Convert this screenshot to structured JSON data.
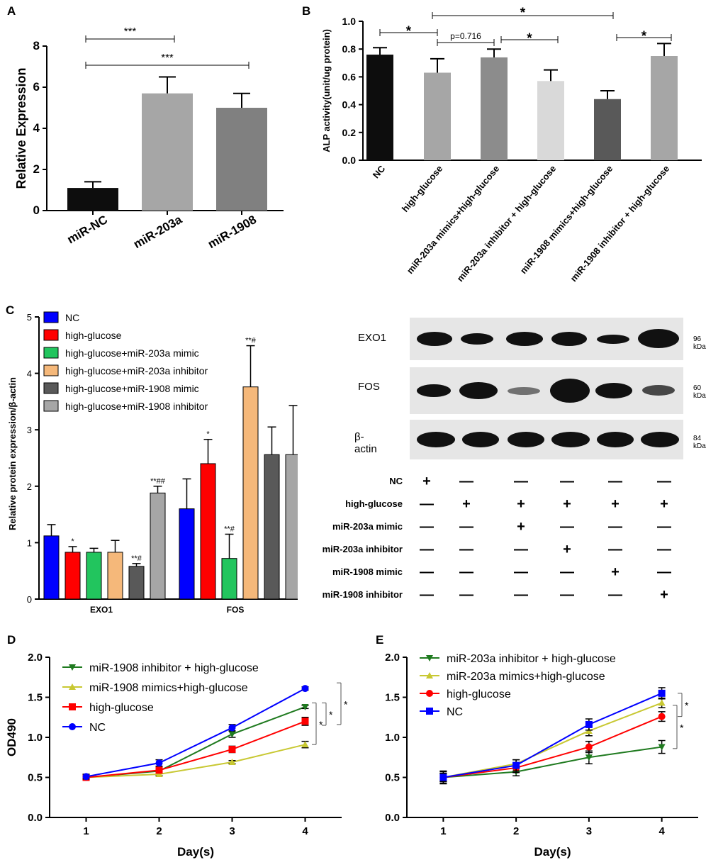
{
  "panels": {
    "A": "A",
    "B": "B",
    "C": "C",
    "D": "D",
    "E": "E"
  },
  "chart_data": [
    {
      "id": "A",
      "type": "bar",
      "title": "",
      "xlabel": "",
      "ylabel": "Relative Expression",
      "ylim": [
        0,
        8
      ],
      "yticks": [
        0,
        2,
        4,
        6,
        8
      ],
      "categories": [
        "miR-NC",
        "miR-203a",
        "miR-1908"
      ],
      "values": [
        1.1,
        5.7,
        5.0
      ],
      "errors": [
        0.3,
        0.8,
        0.7
      ],
      "colors": [
        "#0d0d0d",
        "#a6a6a6",
        "#808080"
      ],
      "annotations": [
        {
          "text": "***",
          "from": 0,
          "to": 1
        },
        {
          "text": "***",
          "from": 0,
          "to": 2
        }
      ]
    },
    {
      "id": "B",
      "type": "bar",
      "title": "",
      "xlabel": "",
      "ylabel": "ALP activity(unit/ug protein)",
      "ylim": [
        0,
        1.0
      ],
      "yticks": [
        0.0,
        0.2,
        0.4,
        0.6,
        0.8,
        1.0
      ],
      "categories": [
        "NC",
        "high-glucose",
        "miR-203a mimics+high-glucose",
        "miR-203a inhibitor + high-glucose",
        "miR-1908 mimics+high-glucose",
        "miR-1908 inhibitor + high-glucose"
      ],
      "values": [
        0.76,
        0.63,
        0.74,
        0.57,
        0.44,
        0.75
      ],
      "errors": [
        0.05,
        0.1,
        0.06,
        0.08,
        0.06,
        0.09
      ],
      "colors": [
        "#0d0d0d",
        "#a6a6a6",
        "#8c8c8c",
        "#d9d9d9",
        "#595959",
        "#a6a6a6"
      ],
      "annotations": [
        {
          "text": "*",
          "from": 0,
          "to": 1
        },
        {
          "text": "p=0.716",
          "from": 1,
          "to": 2
        },
        {
          "text": "*",
          "from": 2,
          "to": 3
        },
        {
          "text": "*",
          "from": 1,
          "to": 4
        },
        {
          "text": "*",
          "from": 4,
          "to": 5
        }
      ]
    },
    {
      "id": "C",
      "type": "bar",
      "title": "",
      "xlabel": "",
      "ylabel": "Relative protein expression/β-actin",
      "ylim": [
        0,
        5
      ],
      "yticks": [
        0,
        1,
        2,
        3,
        4,
        5
      ],
      "categories": [
        "EXO1",
        "FOS"
      ],
      "series": [
        {
          "name": "NC",
          "color": "#0000ff",
          "values": [
            1.12,
            1.6
          ],
          "errors": [
            0.2,
            0.53
          ],
          "labels": [
            "",
            ""
          ]
        },
        {
          "name": "high-glucose",
          "color": "#ff0000",
          "values": [
            0.83,
            2.4
          ],
          "errors": [
            0.1,
            0.43
          ],
          "labels": [
            "*",
            "*"
          ]
        },
        {
          "name": "high-glucose+miR-203a mimic",
          "color": "#22c55e",
          "values": [
            0.83,
            0.72
          ],
          "errors": [
            0.07,
            0.43
          ],
          "labels": [
            "",
            "**#"
          ]
        },
        {
          "name": "high-glucose+miR-203a inhibitor",
          "color": "#f5b87a",
          "values": [
            0.83,
            3.76
          ],
          "errors": [
            0.21,
            0.73
          ],
          "labels": [
            "",
            "**#"
          ]
        },
        {
          "name": "high-glucose+miR-1908 mimic",
          "color": "#595959",
          "values": [
            0.58,
            2.56
          ],
          "errors": [
            0.05,
            0.49
          ],
          "labels": [
            "**#",
            ""
          ]
        },
        {
          "name": "high-glucose+miR-1908 inhibitor",
          "color": "#a6a6a6",
          "values": [
            1.88,
            2.56
          ],
          "errors": [
            0.12,
            0.87
          ],
          "labels": [
            "**##",
            ""
          ]
        }
      ]
    },
    {
      "id": "D",
      "type": "line",
      "title": "",
      "xlabel": "Day(s)",
      "ylabel": "OD490",
      "x": [
        1,
        2,
        3,
        4
      ],
      "xlim": [
        0.5,
        4.5
      ],
      "ylim": [
        0.0,
        2.0
      ],
      "yticks": [
        0.0,
        0.5,
        1.0,
        1.5,
        2.0
      ],
      "series": [
        {
          "name": "miR-1908 inhibitor + high-glucose",
          "color": "#1f7a1f",
          "marker": "tri-down",
          "values": [
            0.5,
            0.58,
            1.04,
            1.38
          ],
          "errors": [
            0.02,
            0.02,
            0.04,
            0.02
          ]
        },
        {
          "name": "miR-1908 mimics+high-glucose",
          "color": "#c8c832",
          "marker": "tri-up",
          "values": [
            0.5,
            0.54,
            0.69,
            0.91
          ],
          "errors": [
            0.02,
            0.02,
            0.02,
            0.04
          ]
        },
        {
          "name": "high-glucose",
          "color": "#ff0000",
          "marker": "square",
          "values": [
            0.5,
            0.59,
            0.85,
            1.2
          ],
          "errors": [
            0.03,
            0.03,
            0.04,
            0.05
          ]
        },
        {
          "name": "NC",
          "color": "#0000ff",
          "marker": "circle",
          "values": [
            0.51,
            0.68,
            1.12,
            1.61
          ],
          "errors": [
            0.03,
            0.04,
            0.04,
            0.02
          ]
        }
      ],
      "annotations": [
        "*",
        "*",
        "*"
      ]
    },
    {
      "id": "E",
      "type": "line",
      "title": "",
      "xlabel": "Day(s)",
      "ylabel": "",
      "x": [
        1,
        2,
        3,
        4
      ],
      "xlim": [
        0.5,
        4.5
      ],
      "ylim": [
        0.0,
        2.0
      ],
      "yticks": [
        0.0,
        0.5,
        1.0,
        1.5,
        2.0
      ],
      "series": [
        {
          "name": "miR-203a inhibitor + high-glucose",
          "color": "#1f7a1f",
          "marker": "tri-down",
          "values": [
            0.5,
            0.57,
            0.75,
            0.88
          ],
          "errors": [
            0.08,
            0.05,
            0.08,
            0.08
          ]
        },
        {
          "name": "miR-203a mimics+high-glucose",
          "color": "#c8c832",
          "marker": "tri-up",
          "values": [
            0.5,
            0.67,
            1.08,
            1.43
          ],
          "errors": [
            0.05,
            0.05,
            0.06,
            0.06
          ]
        },
        {
          "name": "high-glucose",
          "color": "#ff0000",
          "marker": "circle",
          "values": [
            0.5,
            0.62,
            0.88,
            1.26
          ],
          "errors": [
            0.05,
            0.06,
            0.07,
            0.06
          ]
        },
        {
          "name": "NC",
          "color": "#0000ff",
          "marker": "square",
          "values": [
            0.5,
            0.65,
            1.16,
            1.55
          ],
          "errors": [
            0.07,
            0.07,
            0.07,
            0.07
          ]
        }
      ],
      "annotations": [
        "*",
        "*"
      ]
    }
  ],
  "western_blot": {
    "proteins": [
      {
        "name": "EXO1",
        "kda": "96 kDa"
      },
      {
        "name": "FOS",
        "kda": "60 kDa"
      },
      {
        "name": "β-actin",
        "kda": "84 kDa"
      }
    ],
    "treatments": [
      {
        "name": "NC",
        "marks": [
          "+",
          "—",
          "—",
          "—",
          "—",
          "—"
        ]
      },
      {
        "name": "high-glucose",
        "marks": [
          "—",
          "+",
          "+",
          "+",
          "+",
          "+"
        ]
      },
      {
        "name": "miR-203a mimic",
        "marks": [
          "—",
          "—",
          "+",
          "—",
          "—",
          "—"
        ]
      },
      {
        "name": "miR-203a inhibitor",
        "marks": [
          "—",
          "—",
          "—",
          "+",
          "—",
          "—"
        ]
      },
      {
        "name": "miR-1908 mimic",
        "marks": [
          "—",
          "—",
          "—",
          "—",
          "+",
          "—"
        ]
      },
      {
        "name": "miR-1908 inhibitor",
        "marks": [
          "—",
          "—",
          "—",
          "—",
          "—",
          "+"
        ]
      }
    ]
  }
}
